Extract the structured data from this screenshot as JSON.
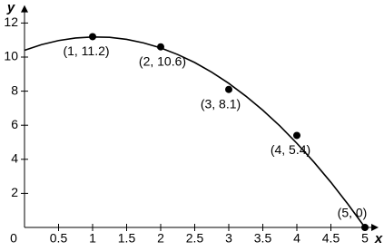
{
  "chart_data": {
    "type": "scatter",
    "x_label": "x",
    "y_label": "y",
    "xlim": [
      0,
      5.2
    ],
    "ylim": [
      0,
      13
    ],
    "xticks": [
      0,
      0.5,
      1,
      1.5,
      2,
      2.5,
      3,
      3.5,
      4,
      4.5,
      5
    ],
    "yticks": [
      2,
      4,
      6,
      8,
      10,
      12
    ],
    "series": [
      {
        "kind": "points",
        "color": "#000000",
        "x": [
          1,
          2,
          3,
          4,
          5
        ],
        "values": [
          11.2,
          10.6,
          8.1,
          5.4,
          0
        ],
        "value_labels": [
          "(1, 11.2)",
          "(2, 10.6)",
          "(3, 8.1)",
          "(4, 5.4)",
          "(5, 0)"
        ]
      },
      {
        "kind": "curve",
        "color": "#000000",
        "x": [
          0,
          0.25,
          0.5,
          0.75,
          1,
          1.25,
          1.5,
          1.75,
          2,
          2.25,
          2.5,
          2.75,
          3,
          3.25,
          3.5,
          3.75,
          4,
          4.25,
          4.5,
          4.75,
          5
        ],
        "values": [
          10.4,
          10.73,
          10.97,
          11.12,
          11.18,
          11.16,
          11.04,
          10.83,
          10.54,
          10.15,
          9.68,
          9.11,
          8.46,
          7.71,
          6.88,
          5.96,
          4.94,
          3.84,
          2.65,
          1.37,
          0
        ]
      }
    ]
  }
}
